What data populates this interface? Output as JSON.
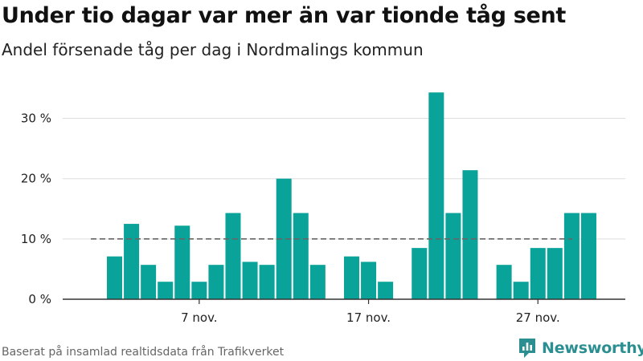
{
  "title": "Under tio dagar var mer än var tionde tåg sent",
  "subtitle": "Andel försenade tåg per dag i Nordmalings kommun",
  "source": "Baserat på insamlad realtidsdata från Trafikverket",
  "brand": {
    "name": "Newsworthy",
    "icon": "newsworthy-logo-icon",
    "color": "#2b8f92"
  },
  "colors": {
    "bar": "#0aa39a",
    "reference_line": "#666666",
    "grid": "#dddddd",
    "axis": "#333333"
  },
  "chart_data": {
    "type": "bar",
    "title": "Under tio dagar var mer än var tionde tåg sent",
    "subtitle": "Andel försenade tåg per dag i Nordmalings kommun",
    "xlabel": "",
    "ylabel": "",
    "x_ticks": [
      {
        "date": "2019-11-07",
        "label": "7 nov."
      },
      {
        "date": "2019-11-17",
        "label": "17 nov."
      },
      {
        "date": "2019-11-27",
        "label": "27 nov."
      }
    ],
    "y_ticks": [
      {
        "value": 0,
        "label": "0 %"
      },
      {
        "value": 10,
        "label": "10 %"
      },
      {
        "value": 20,
        "label": "20 %"
      },
      {
        "value": 30,
        "label": "30 %"
      }
    ],
    "ylim": [
      0,
      33
    ],
    "xlim": [
      "2019-11-01",
      "2019-12-03"
    ],
    "grid": true,
    "reference_line": {
      "value": 10,
      "style": "dashed"
    },
    "unit": "%",
    "dates": [
      "2019-11-02",
      "2019-11-03",
      "2019-11-04",
      "2019-11-05",
      "2019-11-06",
      "2019-11-07",
      "2019-11-08",
      "2019-11-09",
      "2019-11-10",
      "2019-11-11",
      "2019-11-12",
      "2019-11-13",
      "2019-11-14",
      "2019-11-15",
      "2019-11-16",
      "2019-11-17",
      "2019-11-18",
      "2019-11-19",
      "2019-11-20",
      "2019-11-21",
      "2019-11-22",
      "2019-11-23",
      "2019-11-24",
      "2019-11-25",
      "2019-11-26",
      "2019-11-27",
      "2019-11-28",
      "2019-11-29",
      "2019-11-30"
    ],
    "values": [
      7.1,
      12.5,
      5.7,
      2.9,
      12.2,
      2.9,
      5.7,
      14.3,
      6.2,
      5.7,
      20.0,
      14.3,
      5.7,
      null,
      7.1,
      6.2,
      2.9,
      null,
      8.5,
      34.3,
      14.3,
      21.4,
      null,
      5.7,
      2.9,
      8.5,
      8.5,
      14.3,
      14.3
    ]
  }
}
